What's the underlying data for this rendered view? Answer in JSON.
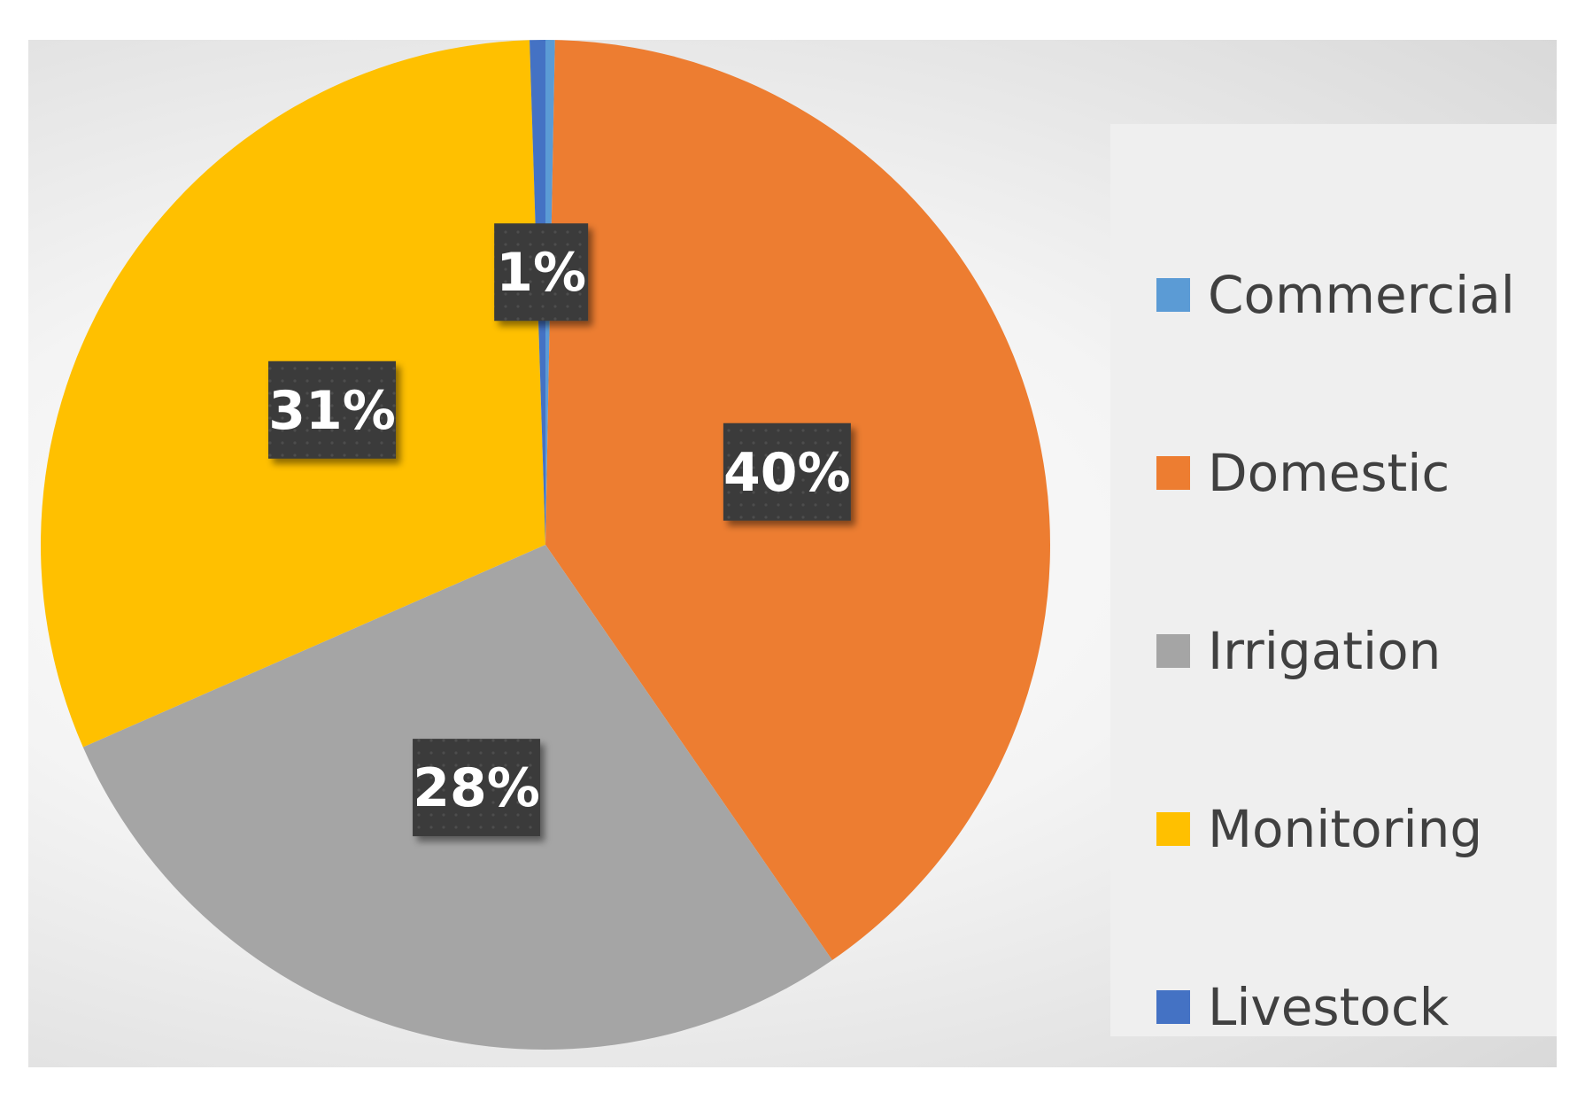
{
  "chart_data": {
    "type": "pie",
    "title": "",
    "categories": [
      "Commercial",
      "Domestic",
      "Irrigation",
      "Monitoring",
      "Livestock"
    ],
    "values": [
      0.3,
      40,
      28,
      31,
      0.5
    ],
    "data_labels": [
      "",
      "40%",
      "28%",
      "31%",
      "1%"
    ],
    "colors": [
      "#5b9bd5",
      "#ed7d31",
      "#a5a5a5",
      "#ffc000",
      "#4472c4"
    ],
    "legend_position": "right"
  },
  "legend": {
    "items": [
      {
        "label": "Commercial",
        "color": "#5b9bd5"
      },
      {
        "label": "Domestic",
        "color": "#ed7d31"
      },
      {
        "label": "Irrigation",
        "color": "#a5a5a5"
      },
      {
        "label": "Monitoring",
        "color": "#ffc000"
      },
      {
        "label": "Livestock",
        "color": "#4472c4"
      }
    ]
  }
}
